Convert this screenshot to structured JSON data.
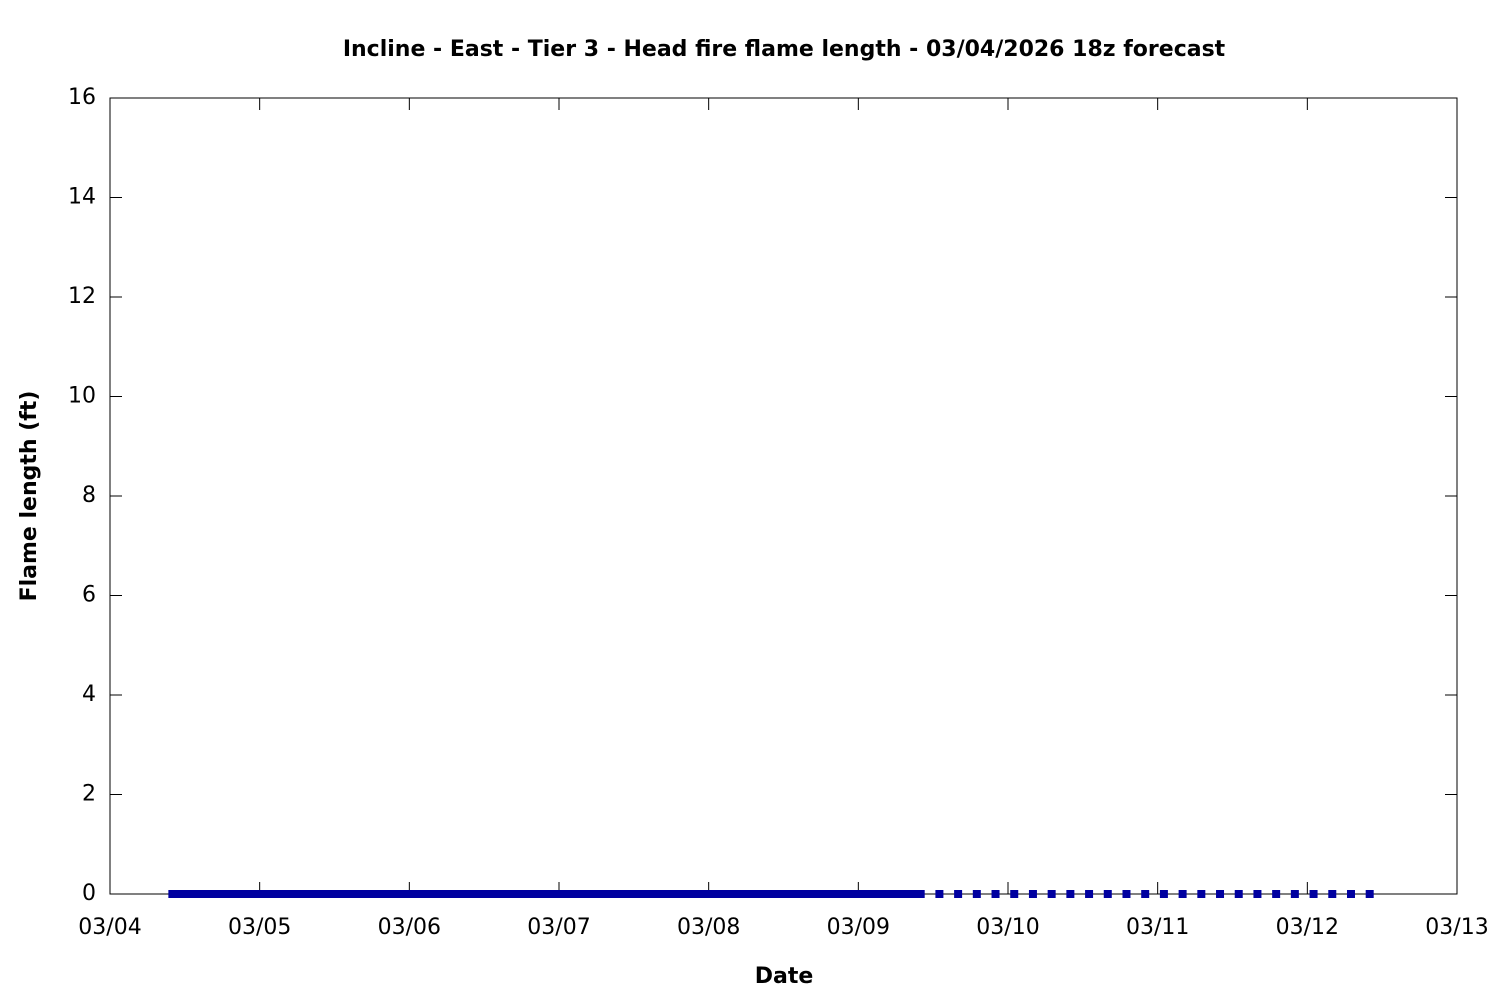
{
  "chart_data": {
    "type": "scatter",
    "title": "Incline - East - Tier 3 - Head fire flame length - 03/04/2026 18z forecast",
    "x_label": "Date",
    "y_label": "Flame length (ft)",
    "color": "#0000a0",
    "marker": "square",
    "grid": false,
    "xlim": [
      0,
      216
    ],
    "xticks": [
      {
        "value": 0,
        "label": "03/04"
      },
      {
        "value": 24,
        "label": "03/05"
      },
      {
        "value": 48,
        "label": "03/06"
      },
      {
        "value": 72,
        "label": "03/07"
      },
      {
        "value": 96,
        "label": "03/08"
      },
      {
        "value": 120,
        "label": "03/09"
      },
      {
        "value": 144,
        "label": "03/10"
      },
      {
        "value": 168,
        "label": "03/11"
      },
      {
        "value": 192,
        "label": "03/12"
      },
      {
        "value": 216,
        "label": "03/13"
      }
    ],
    "ylim": [
      0,
      16
    ],
    "yticks": [
      0,
      2,
      4,
      6,
      8,
      10,
      12,
      14,
      16
    ],
    "x": [
      10,
      11,
      12,
      13,
      14,
      15,
      16,
      17,
      18,
      19,
      20,
      21,
      22,
      23,
      24,
      25,
      26,
      27,
      28,
      29,
      30,
      31,
      32,
      33,
      34,
      35,
      36,
      37,
      38,
      39,
      40,
      41,
      42,
      43,
      44,
      45,
      46,
      47,
      48,
      49,
      50,
      51,
      52,
      53,
      54,
      55,
      56,
      57,
      58,
      59,
      60,
      61,
      62,
      63,
      64,
      65,
      66,
      67,
      68,
      69,
      70,
      71,
      72,
      73,
      74,
      75,
      76,
      77,
      78,
      79,
      80,
      81,
      82,
      83,
      84,
      85,
      86,
      87,
      88,
      89,
      90,
      91,
      92,
      93,
      94,
      95,
      96,
      97,
      98,
      99,
      100,
      101,
      102,
      103,
      104,
      105,
      106,
      107,
      108,
      109,
      110,
      111,
      112,
      113,
      114,
      115,
      116,
      117,
      118,
      119,
      120,
      121,
      122,
      123,
      124,
      125,
      126,
      127,
      128,
      129,
      130,
      133,
      136,
      139,
      142,
      145,
      148,
      151,
      154,
      157,
      160,
      163,
      166,
      169,
      172,
      175,
      178,
      181,
      184,
      187,
      190,
      193,
      196,
      199,
      202
    ],
    "values": [
      0,
      0,
      0,
      0,
      0,
      0,
      0,
      0,
      0,
      0,
      0,
      0,
      0,
      0,
      0,
      0,
      0,
      0,
      0,
      0,
      0,
      0,
      0,
      0,
      0,
      0,
      0,
      0,
      0,
      0,
      0,
      0,
      0,
      0,
      0,
      0,
      0,
      0,
      0,
      0,
      0,
      0,
      0,
      0,
      0,
      0,
      0,
      0,
      0,
      0,
      0,
      0,
      0,
      0,
      0,
      0,
      0,
      0,
      0,
      0,
      0,
      0,
      0,
      0,
      0,
      0,
      0,
      0,
      0,
      0,
      0,
      0,
      0,
      0,
      0,
      0,
      0,
      0,
      0,
      0,
      0,
      0,
      0,
      0,
      0,
      0,
      0,
      0,
      0,
      0,
      0,
      0,
      0,
      0,
      0,
      0,
      0,
      0,
      0,
      0,
      0,
      0,
      0,
      0,
      0,
      0,
      0,
      0,
      0,
      0,
      0,
      0,
      0,
      0,
      0,
      0,
      0,
      0,
      0,
      0,
      0,
      0,
      0,
      0,
      0,
      0,
      0,
      0,
      0,
      0,
      0,
      0,
      0,
      0,
      0,
      0,
      0,
      0,
      0,
      0,
      0,
      0,
      0,
      0,
      0
    ]
  }
}
